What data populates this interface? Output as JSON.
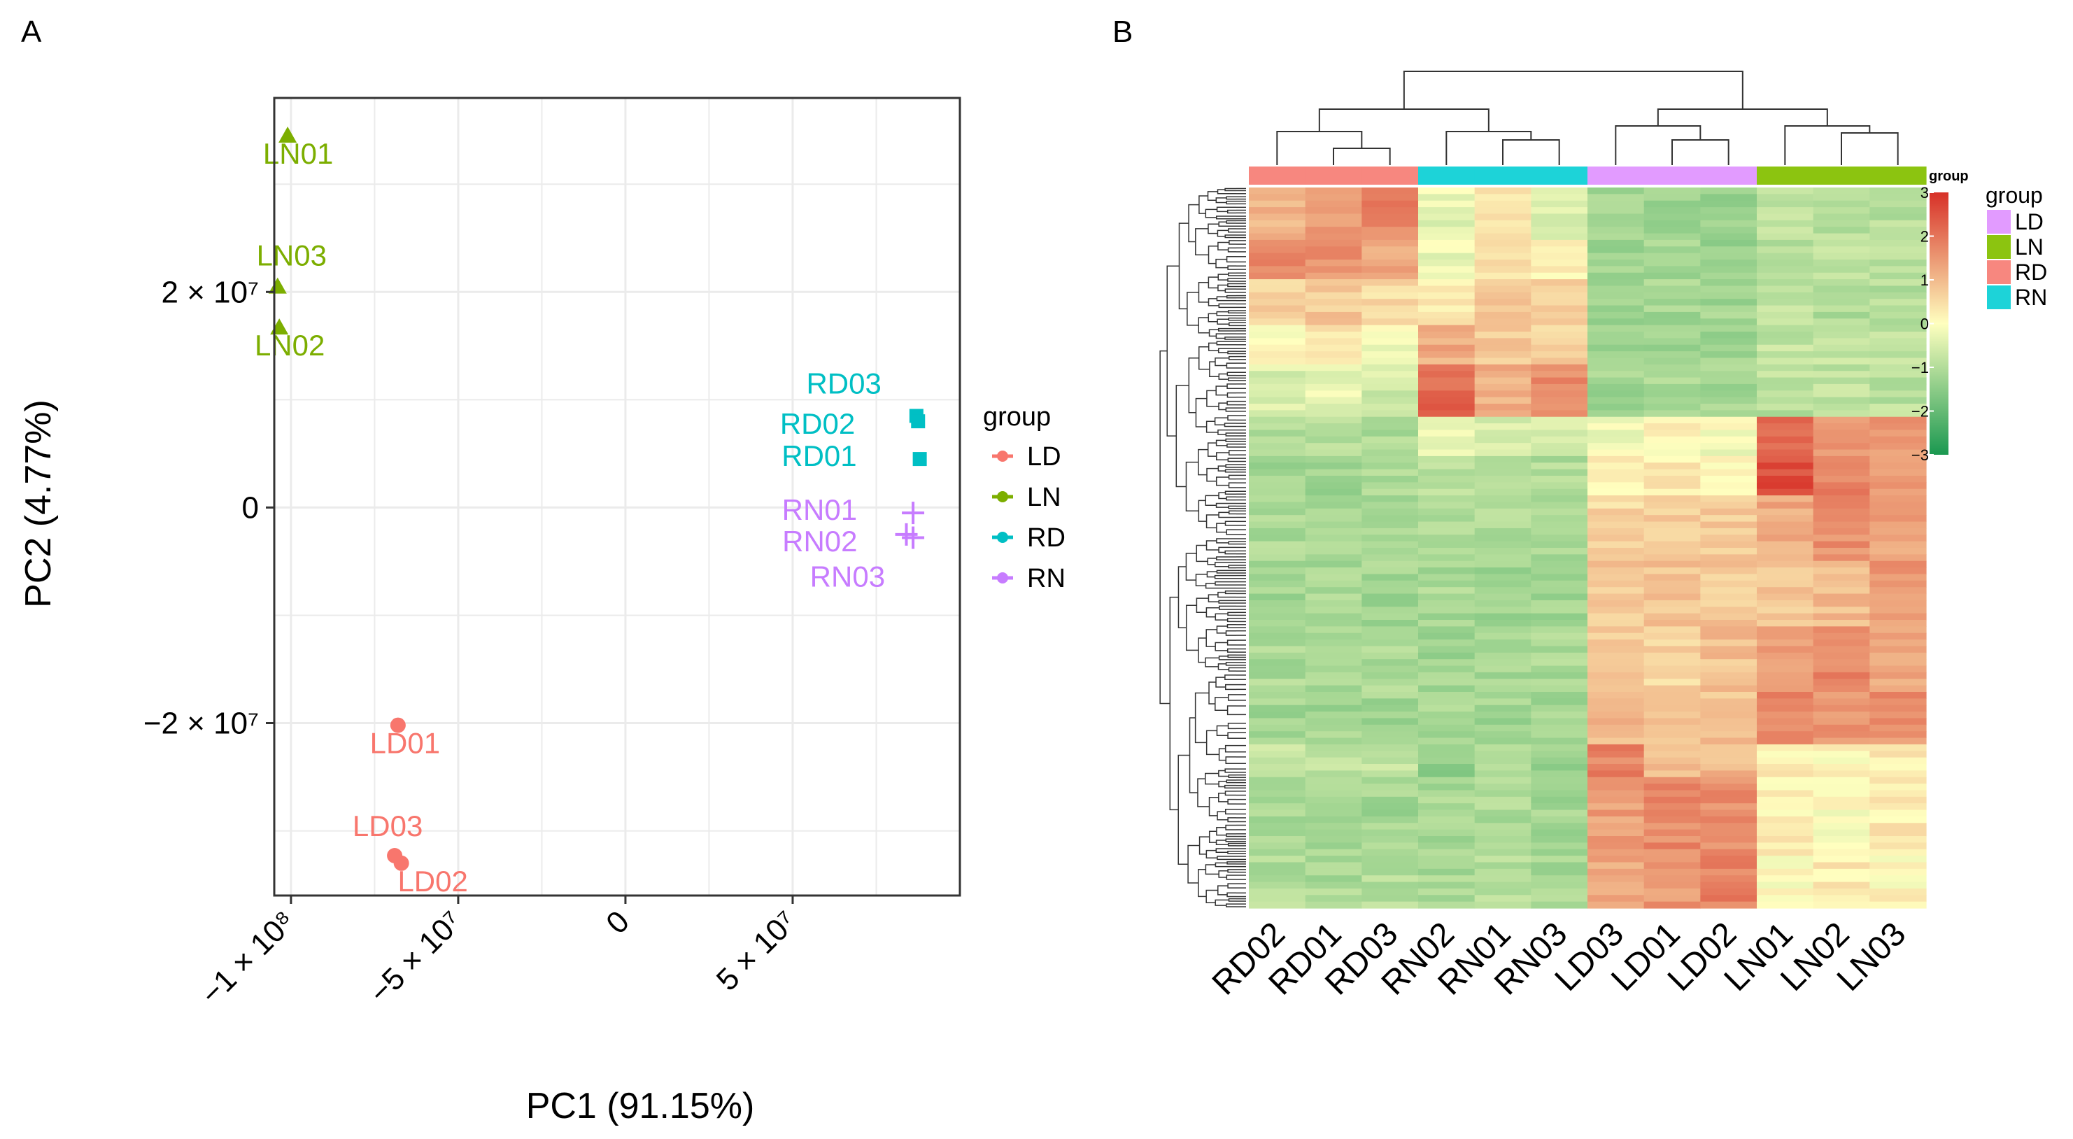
{
  "panels": {
    "a_label": "A",
    "b_label": "B"
  },
  "colors": {
    "LD": "#F8766D",
    "LN": "#7CAE00",
    "RD": "#00BFC4",
    "RN": "#C77CFF",
    "heat_low": "#1A9850",
    "heat_mid": "#FFFFBF",
    "heat_high": "#D73027",
    "anno_LD": "#E29BFF",
    "anno_LN": "#8CC410",
    "anno_RD": "#F7877F",
    "anno_RN": "#1DD3D8"
  },
  "chart_data": [
    {
      "type": "scatter",
      "title": "",
      "xlabel": "PC1 (91.15%)",
      "ylabel": "PC2 (4.77%)",
      "xlim": [
        -105000000,
        100000000
      ],
      "ylim": [
        -36000000,
        38000000
      ],
      "grid": true,
      "x_ticks": [
        {
          "value": -100000000,
          "label": "−1 × 10⁸"
        },
        {
          "value": -50000000,
          "label": "−5 × 10⁷"
        },
        {
          "value": 0,
          "label": "0"
        },
        {
          "value": 50000000,
          "label": "5 × 10⁷"
        }
      ],
      "y_ticks": [
        {
          "value": 20000000,
          "label": "2 × 10⁷"
        },
        {
          "value": 0,
          "label": "0"
        },
        {
          "value": -20000000,
          "label": "−2 × 10⁷"
        }
      ],
      "legend": {
        "title": "group",
        "position": "right",
        "entries": [
          "LD",
          "LN",
          "RD",
          "RN"
        ]
      },
      "series": [
        {
          "name": "LD",
          "marker": "circle",
          "points": [
            {
              "label": "LD01",
              "x": -68000000,
              "y": -20200000
            },
            {
              "label": "LD03",
              "x": -69000000,
              "y": -32300000
            },
            {
              "label": "LD02",
              "x": -67000000,
              "y": -33000000
            }
          ]
        },
        {
          "name": "LN",
          "marker": "triangle",
          "points": [
            {
              "label": "LN01",
              "x": -101000000,
              "y": 34500000
            },
            {
              "label": "LN03",
              "x": -104000000,
              "y": 20500000
            },
            {
              "label": "LN02",
              "x": -103500000,
              "y": 16700000
            }
          ]
        },
        {
          "name": "RD",
          "marker": "square",
          "points": [
            {
              "label": "RD03",
              "x": 87000000,
              "y": 8500000
            },
            {
              "label": "RD02",
              "x": 87500000,
              "y": 8000000
            },
            {
              "label": "RD01",
              "x": 88000000,
              "y": 4500000
            }
          ]
        },
        {
          "name": "RN",
          "marker": "cross",
          "points": [
            {
              "label": "RN01",
              "x": 86000000,
              "y": -500000
            },
            {
              "label": "RN02",
              "x": 84000000,
              "y": -2500000
            },
            {
              "label": "RN03",
              "x": 86000000,
              "y": -2800000
            }
          ]
        }
      ]
    },
    {
      "type": "heatmap",
      "title": "",
      "columns": [
        "RD02",
        "RD01",
        "RD03",
        "RN02",
        "RN01",
        "RN03",
        "LD03",
        "LD01",
        "LD02",
        "LN01",
        "LN02",
        "LN03"
      ],
      "column_groups": [
        "RD",
        "RD",
        "RD",
        "RN",
        "RN",
        "RN",
        "LD",
        "LD",
        "LD",
        "LN",
        "LN",
        "LN"
      ],
      "annotation_title": "group",
      "annotation_legend": {
        "title": "group",
        "entries": [
          "LD",
          "LN",
          "RD",
          "RN"
        ]
      },
      "color_scale": {
        "title": "group",
        "min": -3,
        "max": 3,
        "ticks": [
          3,
          2,
          1,
          0,
          -1,
          -2,
          -3
        ],
        "tick_labels": [
          "3",
          "2",
          "1",
          "0",
          "−1",
          "−2",
          "−3"
        ]
      },
      "row_blocks": [
        {
          "rows": 8,
          "values": [
            1.0,
            1.5,
            1.8,
            -0.3,
            0.4,
            -0.5,
            -1.2,
            -1.3,
            -1.3,
            -0.9,
            -1.0,
            -0.9
          ]
        },
        {
          "rows": 6,
          "values": [
            1.8,
            1.6,
            1.2,
            -0.2,
            0.5,
            0.2,
            -1.2,
            -1.2,
            -1.3,
            -1.0,
            -0.8,
            -1.0
          ]
        },
        {
          "rows": 7,
          "values": [
            0.6,
            0.8,
            0.5,
            0.2,
            0.9,
            0.6,
            -1.3,
            -1.2,
            -1.2,
            -0.9,
            -1.0,
            -1.0
          ]
        },
        {
          "rows": 6,
          "values": [
            0.0,
            0.3,
            -0.1,
            1.2,
            0.8,
            0.6,
            -1.3,
            -1.3,
            -1.3,
            -0.8,
            -0.7,
            -0.8
          ]
        },
        {
          "rows": 8,
          "values": [
            -0.5,
            -0.3,
            -0.6,
            2.2,
            1.2,
            1.7,
            -1.2,
            -1.1,
            -1.2,
            -0.9,
            -0.8,
            -0.9
          ]
        },
        {
          "rows": 6,
          "values": [
            -1.1,
            -1.0,
            -1.1,
            -0.3,
            -0.5,
            -0.4,
            -0.2,
            0.1,
            -0.1,
            2.3,
            1.4,
            1.5
          ]
        },
        {
          "rows": 6,
          "values": [
            -1.2,
            -1.2,
            -1.1,
            -1.0,
            -1.1,
            -1.0,
            0.2,
            0.3,
            0.2,
            2.6,
            1.8,
            1.4
          ]
        },
        {
          "rows": 10,
          "values": [
            -1.1,
            -1.1,
            -1.2,
            -1.1,
            -1.1,
            -1.2,
            0.6,
            0.8,
            0.7,
            1.2,
            1.6,
            1.3
          ]
        },
        {
          "rows": 10,
          "values": [
            -1.2,
            -1.1,
            -1.2,
            -1.1,
            -1.2,
            -1.2,
            0.8,
            0.9,
            0.8,
            0.8,
            1.0,
            1.5
          ]
        },
        {
          "rows": 10,
          "values": [
            -1.1,
            -1.2,
            -1.1,
            -1.2,
            -1.1,
            -1.1,
            0.7,
            0.6,
            0.9,
            1.5,
            1.7,
            1.3
          ]
        },
        {
          "rows": 8,
          "values": [
            -1.2,
            -1.2,
            -1.2,
            -1.2,
            -1.2,
            -1.2,
            1.0,
            0.8,
            0.9,
            1.8,
            1.5,
            1.6
          ]
        },
        {
          "rows": 5,
          "values": [
            -0.8,
            -0.9,
            -0.7,
            -1.5,
            -1.0,
            -1.3,
            1.8,
            0.9,
            1.0,
            0.2,
            0.1,
            0.3
          ]
        },
        {
          "rows": 12,
          "values": [
            -1.1,
            -1.1,
            -1.2,
            -1.1,
            -1.1,
            -1.2,
            1.4,
            1.7,
            1.6,
            0.2,
            0.0,
            0.3
          ]
        },
        {
          "rows": 8,
          "values": [
            -1.0,
            -1.1,
            -1.0,
            -1.1,
            -1.0,
            -1.1,
            1.3,
            1.5,
            1.8,
            0.0,
            0.3,
            0.1
          ]
        }
      ]
    }
  ]
}
